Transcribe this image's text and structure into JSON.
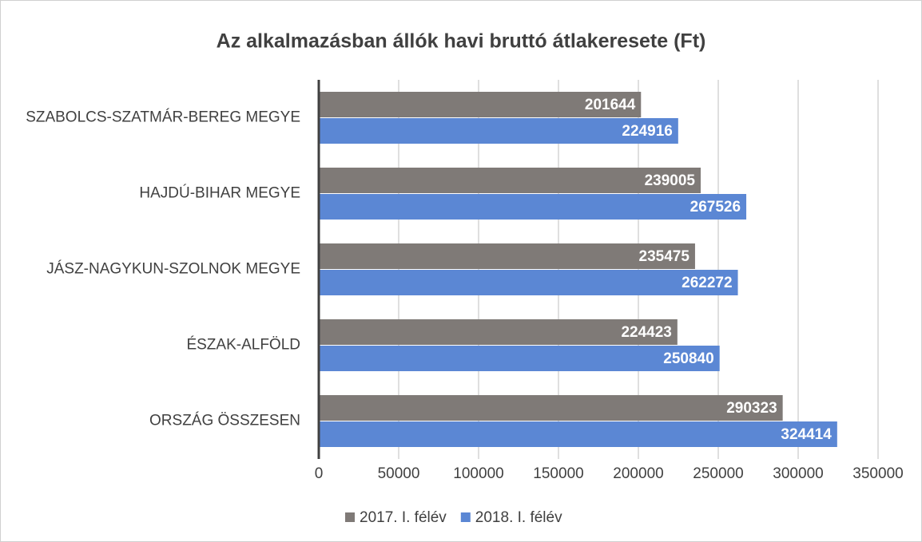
{
  "chart_data": {
    "type": "barh",
    "title": "Az alkalmazásban állók havi bruttó átlakeresete (Ft)",
    "categories": [
      "SZABOLCS-SZATMÁR-BEREG MEGYE",
      "HAJDÚ-BIHAR MEGYE",
      "JÁSZ-NAGYKUN-SZOLNOK MEGYE",
      "ÉSZAK-ALFÖLD",
      "ORSZÁG ÖSSZESEN"
    ],
    "series": [
      {
        "name": "2017. I. félév",
        "color": "#7f7a77",
        "values": [
          201644,
          239005,
          235475,
          224423,
          290323
        ]
      },
      {
        "name": "2018. I. félév",
        "color": "#5b87d4",
        "values": [
          224916,
          267526,
          262272,
          250840,
          324414
        ]
      }
    ],
    "xlim": [
      0,
      350000
    ],
    "xticks": [
      0,
      50000,
      100000,
      150000,
      200000,
      250000,
      300000,
      350000
    ],
    "grid": true,
    "legend": "bottom",
    "data_labels": true
  }
}
